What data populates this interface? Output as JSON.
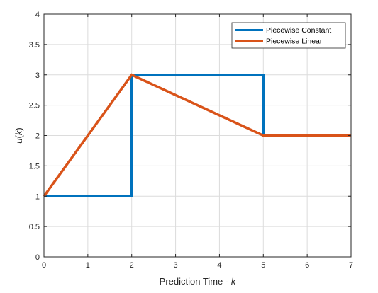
{
  "chart_data": {
    "type": "line",
    "title": "",
    "xlabel": "Prediction Time - ",
    "xlabel_var": "k",
    "ylabel_fn": "u",
    "ylabel_var": "k",
    "xlim": [
      0,
      7
    ],
    "ylim": [
      0,
      4
    ],
    "xticks": [
      0,
      1,
      2,
      3,
      4,
      5,
      6,
      7
    ],
    "yticks": [
      0,
      0.5,
      1,
      1.5,
      2,
      2.5,
      3,
      3.5,
      4
    ],
    "xtick_labels": [
      "0",
      "1",
      "2",
      "3",
      "4",
      "5",
      "6",
      "7"
    ],
    "ytick_labels": [
      "0",
      "0.5",
      "1",
      "1.5",
      "2",
      "2.5",
      "3",
      "3.5",
      "4"
    ],
    "grid": true,
    "legend_position": "top-right",
    "series": [
      {
        "name": "Piecewise Constant",
        "color": "#0072BD",
        "x": [
          0,
          2,
          2,
          5,
          5,
          7
        ],
        "y": [
          1,
          1,
          3,
          3,
          2,
          2
        ]
      },
      {
        "name": "Piecewise Linear",
        "color": "#D95319",
        "x": [
          0,
          2,
          5,
          7
        ],
        "y": [
          1,
          3,
          2,
          2
        ]
      }
    ]
  }
}
